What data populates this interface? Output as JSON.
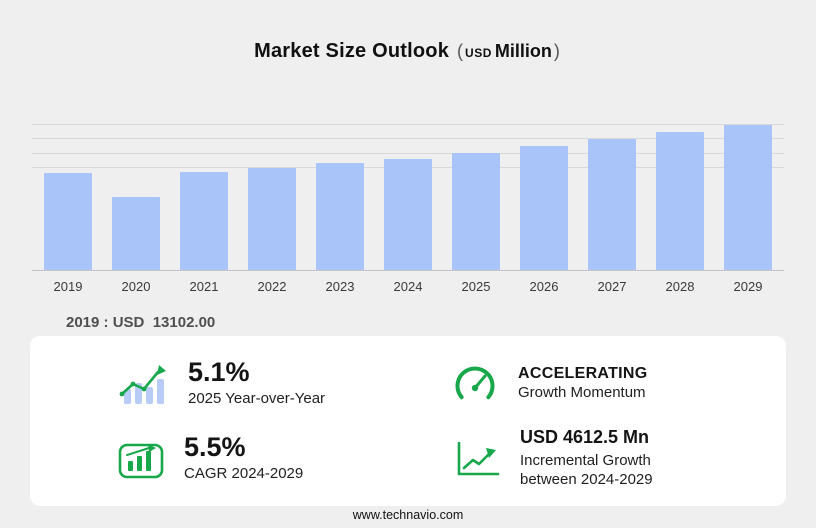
{
  "title": {
    "main": "Market Size Outlook",
    "paren_open": "(",
    "currency": "USD",
    "unit": "Million",
    "paren_close": ")"
  },
  "annotation": {
    "text": "2019 : USD  13102.00"
  },
  "chart_data": {
    "type": "bar",
    "title": "Market Size Outlook (USD Million)",
    "xlabel": "",
    "ylabel": "USD Million",
    "categories": [
      "2019",
      "2020",
      "2021",
      "2022",
      "2023",
      "2024",
      "2025",
      "2026",
      "2027",
      "2028",
      "2029"
    ],
    "values": [
      13102,
      9860,
      13240,
      13810,
      14510,
      15026.4,
      15792.7,
      16770,
      17750,
      18740,
      19638.9
    ],
    "ylim": [
      0,
      20600
    ],
    "gridlines": [
      13800,
      15750,
      17700,
      19650
    ],
    "grid": "horizontal",
    "legend_position": "none",
    "bar_color": "#a8c4f8",
    "base_year_value_label": "2019 : USD 13102.00"
  },
  "stats": {
    "yoy": {
      "value": "5.1%",
      "label": "2025 Year-over-Year"
    },
    "momentum": {
      "value": "ACCELERATING",
      "label": "Growth Momentum"
    },
    "cagr": {
      "value": "5.5%",
      "label": "CAGR 2024-2029"
    },
    "incremental": {
      "value": "USD 4612.5 Mn",
      "label_line1": "Incremental Growth",
      "label_line2": "between 2024-2029"
    }
  },
  "footer": {
    "url": "www.technavio.com"
  },
  "colors": {
    "accent_green": "#18a74a",
    "bar_fill": "#a8c4f8",
    "background": "#efefef",
    "panel": "#ffffff"
  }
}
